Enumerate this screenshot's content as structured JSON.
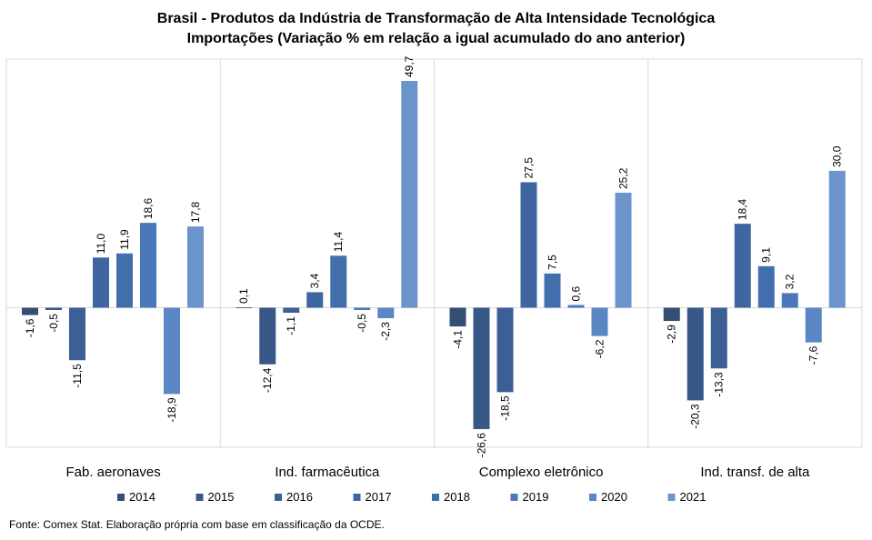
{
  "chart_data": {
    "type": "bar",
    "title": "Brasil - Produtos da Indústria de Transformação de Alta Intensidade Tecnológica",
    "subtitle": "Importações (Variação % em relação a igual acumulado do ano anterior)",
    "categories": [
      "Fab. aeronaves",
      "Ind. farmacêutica",
      "Complexo eletrônico",
      "Ind. transf. de alta"
    ],
    "series": [
      {
        "name": "2014",
        "color": "#344e72",
        "values": [
          -1.6,
          0.1,
          -4.1,
          -2.9
        ],
        "labels": [
          "-1,6",
          "0,1",
          "-4,1",
          "-2,9"
        ]
      },
      {
        "name": "2015",
        "color": "#385887",
        "values": [
          -0.5,
          -12.4,
          -26.6,
          -20.3
        ],
        "labels": [
          "-0,5",
          "-12,4",
          "-26,6",
          "-20,3"
        ]
      },
      {
        "name": "2016",
        "color": "#3c5f95",
        "values": [
          -11.5,
          -1.1,
          -18.5,
          -13.3
        ],
        "labels": [
          "-11,5",
          "-1,1",
          "-18,5",
          "-13,3"
        ]
      },
      {
        "name": "2017",
        "color": "#3f66a1",
        "values": [
          11.0,
          3.4,
          27.5,
          18.4
        ],
        "labels": [
          "11,0",
          "3,4",
          "27,5",
          "18,4"
        ]
      },
      {
        "name": "2018",
        "color": "#436eac",
        "values": [
          11.9,
          11.4,
          7.5,
          9.1
        ],
        "labels": [
          "11,9",
          "11,4",
          "7,5",
          "9,1"
        ]
      },
      {
        "name": "2019",
        "color": "#4a78b9",
        "values": [
          18.6,
          -0.5,
          0.6,
          3.2
        ],
        "labels": [
          "18,6",
          "-0,5",
          "0,6",
          "3,2"
        ]
      },
      {
        "name": "2020",
        "color": "#5a86c4",
        "values": [
          -18.9,
          -2.3,
          -6.2,
          -7.6
        ],
        "labels": [
          "-18,9",
          "-2,3",
          "-6,2",
          "-7,6"
        ]
      },
      {
        "name": "2021",
        "color": "#6b93cc",
        "values": [
          17.8,
          49.7,
          25.2,
          30.0
        ],
        "labels": [
          "17,8",
          "49,7",
          "25,2",
          "30,0"
        ]
      }
    ],
    "ylim": [
      -30,
      55
    ],
    "grid": false,
    "legend": "bottom"
  },
  "source_note": "Fonte: Comex Stat. Elaboração própria com base em classificação da OCDE."
}
